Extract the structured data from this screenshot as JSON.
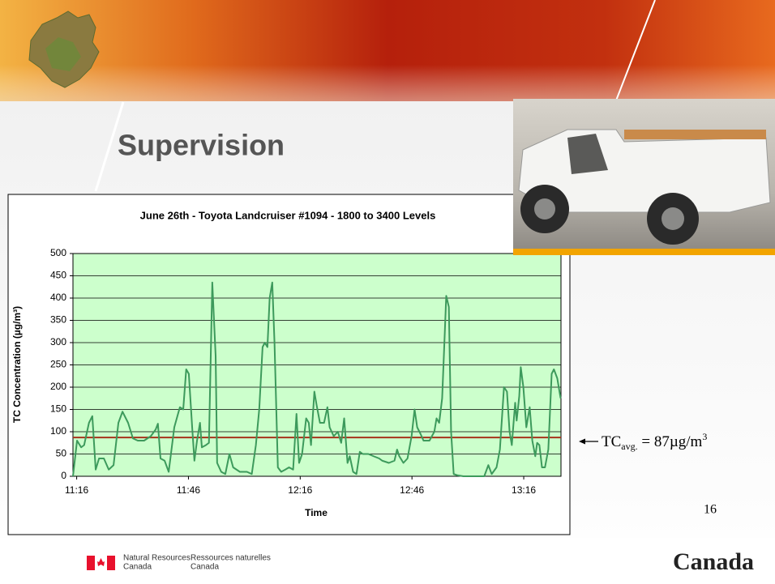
{
  "slide": {
    "title": "Supervision",
    "page_number": "16"
  },
  "footer": {
    "department_en": [
      "Natural Resources",
      "Canada"
    ],
    "department_fr": [
      "Ressources naturelles",
      "Canada"
    ],
    "wordmark": "Canada"
  },
  "chart_data": {
    "type": "line",
    "title": "June 26th - Toyota Landcruiser #1094 - 1800 to 3400 Levels",
    "xlabel": "Time",
    "ylabel": "TC Concentration (µg/m³)",
    "x": [
      675.0,
      676.1,
      677.2,
      678.0,
      679.3,
      680.2,
      681.1,
      682.0,
      683.3,
      684.6,
      685.9,
      687.2,
      688.3,
      689.8,
      691.1,
      692.4,
      694.1,
      695.9,
      697.2,
      697.8,
      698.5,
      699.6,
      700.7,
      702.2,
      703.7,
      704.6,
      705.4,
      706.1,
      707.0,
      707.6,
      708.3,
      709.1,
      709.6,
      710.7,
      711.5,
      712.4,
      713.3,
      713.7,
      714.8,
      715.9,
      717.0,
      718.0,
      719.8,
      721.7,
      723.0,
      724.1,
      725.0,
      725.9,
      726.5,
      727.2,
      727.8,
      728.5,
      729.1,
      730.0,
      730.9,
      732.0,
      733.0,
      734.1,
      735.0,
      735.7,
      736.5,
      737.6,
      738.3,
      738.9,
      739.8,
      740.4,
      741.3,
      742.4,
      743.3,
      743.9,
      745.0,
      746.1,
      747.0,
      747.8,
      748.7,
      749.3,
      750.2,
      751.1,
      752.0,
      752.8,
      754.3,
      755.7,
      757.2,
      758.0,
      759.8,
      761.3,
      762.0,
      762.6,
      763.7,
      764.8,
      765.9,
      766.7,
      767.4,
      768.3,
      769.1,
      770.7,
      772.0,
      772.6,
      773.3,
      774.1,
      774.8,
      775.2,
      775.9,
      776.5,
      777.2,
      778.3,
      779.8,
      781.5,
      783.7,
      785.4,
      786.5,
      787.4,
      788.7,
      789.6,
      790.7,
      791.5,
      792.2,
      792.8,
      793.7,
      794.1,
      794.8,
      795.2,
      795.9,
      796.7,
      797.6,
      798.3,
      799.1,
      799.6,
      800.2,
      800.9,
      801.7,
      802.6,
      803.5,
      804.1,
      805.0,
      805.9
    ],
    "values": [
      0,
      80,
      65,
      70,
      120,
      135,
      15,
      40,
      40,
      15,
      25,
      120,
      145,
      120,
      85,
      80,
      80,
      90,
      105,
      118,
      40,
      35,
      10,
      110,
      155,
      150,
      240,
      230,
      110,
      35,
      80,
      120,
      65,
      70,
      75,
      435,
      270,
      30,
      10,
      5,
      50,
      20,
      10,
      10,
      5,
      70,
      150,
      290,
      300,
      290,
      400,
      435,
      300,
      20,
      10,
      15,
      20,
      15,
      140,
      30,
      50,
      130,
      120,
      70,
      190,
      160,
      120,
      120,
      155,
      110,
      90,
      100,
      75,
      130,
      30,
      45,
      10,
      5,
      55,
      50,
      50,
      45,
      40,
      35,
      30,
      35,
      60,
      45,
      30,
      40,
      90,
      150,
      110,
      95,
      80,
      80,
      100,
      130,
      120,
      175,
      320,
      405,
      380,
      100,
      5,
      2,
      0,
      0,
      0,
      0,
      25,
      5,
      20,
      60,
      200,
      190,
      100,
      70,
      165,
      125,
      180,
      245,
      200,
      110,
      155,
      80,
      45,
      75,
      70,
      20,
      20,
      60,
      230,
      240,
      220,
      175
    ],
    "color": "#3d9a5c",
    "xlim": [
      675,
      806
    ],
    "xticks": [
      {
        "value": 676,
        "label": "11:16"
      },
      {
        "value": 706,
        "label": "11:46"
      },
      {
        "value": 736,
        "label": "12:16"
      },
      {
        "value": 766,
        "label": "12:46"
      },
      {
        "value": 796,
        "label": "13:16"
      }
    ],
    "ylim": [
      0,
      500
    ],
    "yticks": [
      0,
      50,
      100,
      150,
      200,
      250,
      300,
      350,
      400,
      450,
      500
    ],
    "grid": true,
    "plot_background": "#ccffcc",
    "reference_line": {
      "value": 87,
      "color": "#a8321c"
    },
    "annotation": {
      "text": "TC",
      "subscript": "avg.",
      "rest": " = 87µg/m",
      "superscript": "3"
    }
  }
}
